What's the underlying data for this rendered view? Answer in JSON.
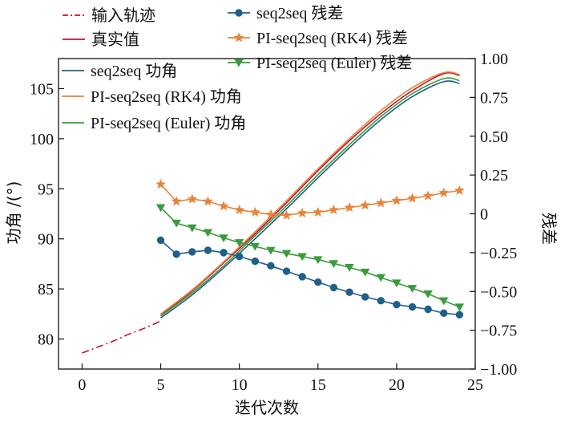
{
  "chart_data": {
    "type": "line",
    "xlabel": "迭代次数",
    "ylabel_left": "功角 /(°)",
    "ylabel_right": "残差",
    "xlim": [
      -1.5,
      25
    ],
    "ylim_left": [
      77,
      108
    ],
    "ylim_right": [
      -1.0,
      1.0
    ],
    "x_ticks": [
      "0",
      "5",
      "10",
      "15",
      "20",
      "25"
    ],
    "y_left_ticks": [
      "80",
      "85",
      "90",
      "95",
      "100",
      "105"
    ],
    "y_right_ticks": [
      "−1.00",
      "−0.75",
      "−0.50",
      "−0.25",
      "0",
      "0.25",
      "0.50",
      "0.75",
      "1.00"
    ],
    "grid": false,
    "legend_placement": "top-left",
    "series": [
      {
        "name": "输入轨迹",
        "axis": "left",
        "style": "dashdot",
        "color": "#c8102e",
        "x": [
          0,
          1,
          2,
          3,
          4,
          5
        ],
        "y": [
          78.6,
          79.2,
          79.8,
          80.5,
          81.1,
          81.8
        ]
      },
      {
        "name": "真实值",
        "axis": "left",
        "style": "solid",
        "color": "#c8102e",
        "x": [
          5,
          7,
          9,
          11,
          13,
          15,
          17,
          19,
          21,
          23,
          24
        ],
        "y": [
          82.4,
          84.8,
          87.6,
          90.5,
          93.6,
          96.8,
          99.8,
          102.5,
          104.8,
          106.5,
          106.3
        ]
      },
      {
        "name": "seq2seq 功角",
        "axis": "left",
        "style": "solid",
        "color": "#1f5f8b",
        "x": [
          5,
          7,
          9,
          11,
          13,
          15,
          17,
          19,
          21,
          23,
          24
        ],
        "y": [
          82.1,
          84.4,
          87.1,
          90.0,
          93.0,
          96.1,
          99.1,
          101.9,
          104.2,
          105.7,
          105.5
        ]
      },
      {
        "name": "PI-seq2seq (RK4) 功角",
        "axis": "left",
        "style": "solid",
        "color": "#e8833a",
        "x": [
          5,
          7,
          9,
          11,
          13,
          15,
          17,
          19,
          21,
          23,
          24
        ],
        "y": [
          82.5,
          84.9,
          87.7,
          90.7,
          93.8,
          97.0,
          100.0,
          102.8,
          105.1,
          106.6,
          106.4
        ]
      },
      {
        "name": "PI-seq2seq (Euler) 功角",
        "axis": "left",
        "style": "solid",
        "color": "#3a9b3a",
        "x": [
          5,
          7,
          9,
          11,
          13,
          15,
          17,
          19,
          21,
          23,
          24
        ],
        "y": [
          82.3,
          84.6,
          87.3,
          90.3,
          93.3,
          96.4,
          99.4,
          102.2,
          104.5,
          106.0,
          105.8
        ]
      },
      {
        "name": "seq2seq 残差",
        "axis": "right",
        "style": "solid",
        "marker": "circle",
        "color": "#1f5f8b",
        "x": [
          5,
          6,
          7,
          8,
          9,
          10,
          11,
          12,
          13,
          14,
          15,
          16,
          17,
          18,
          19,
          20,
          21,
          22,
          23,
          24
        ],
        "y": [
          -0.17,
          -0.26,
          -0.245,
          -0.235,
          -0.25,
          -0.275,
          -0.305,
          -0.335,
          -0.37,
          -0.405,
          -0.44,
          -0.475,
          -0.505,
          -0.535,
          -0.56,
          -0.585,
          -0.6,
          -0.615,
          -0.64,
          -0.65
        ]
      },
      {
        "name": "PI-seq2seq (RK4) 残差",
        "axis": "right",
        "style": "solid",
        "marker": "star",
        "color": "#e8833a",
        "x": [
          5,
          6,
          7,
          8,
          9,
          10,
          11,
          12,
          13,
          14,
          15,
          16,
          17,
          18,
          19,
          20,
          21,
          22,
          23,
          24
        ],
        "y": [
          0.19,
          0.08,
          0.095,
          0.08,
          0.05,
          0.025,
          0.01,
          -0.005,
          -0.01,
          0.005,
          0.01,
          0.025,
          0.04,
          0.055,
          0.07,
          0.085,
          0.1,
          0.115,
          0.135,
          0.15
        ]
      },
      {
        "name": "PI-seq2seq (Euler) 残差",
        "axis": "right",
        "style": "solid",
        "marker": "triangle-down",
        "color": "#3a9b3a",
        "x": [
          5,
          6,
          7,
          8,
          9,
          10,
          11,
          12,
          13,
          14,
          15,
          16,
          17,
          18,
          19,
          20,
          21,
          22,
          23,
          24
        ],
        "y": [
          0.04,
          -0.06,
          -0.09,
          -0.12,
          -0.155,
          -0.185,
          -0.21,
          -0.235,
          -0.255,
          -0.275,
          -0.295,
          -0.32,
          -0.345,
          -0.375,
          -0.41,
          -0.445,
          -0.48,
          -0.515,
          -0.56,
          -0.6
        ]
      }
    ],
    "legend": [
      {
        "label": "输入轨迹",
        "series_index": 0
      },
      {
        "label": "真实值",
        "series_index": 1
      },
      {
        "label": "seq2seq 功角",
        "series_index": 2
      },
      {
        "label": "PI-seq2seq (RK4) 功角",
        "series_index": 3
      },
      {
        "label": "PI-seq2seq (Euler) 功角",
        "series_index": 4
      },
      {
        "label": "seq2seq 残差",
        "series_index": 5
      },
      {
        "label": "PI-seq2seq (RK4) 残差",
        "series_index": 6
      },
      {
        "label": "PI-seq2seq (Euler) 残差",
        "series_index": 7
      }
    ]
  }
}
